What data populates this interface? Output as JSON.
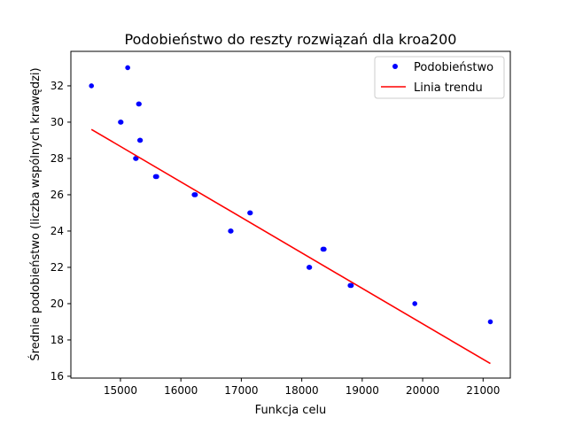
{
  "chart_data": {
    "type": "scatter",
    "title": "Podobieństwo do reszty rozwiązań dla kroa200",
    "xlabel": "Funkcja celu",
    "ylabel": "Średnie podobieństwo (liczba wspólnych krawędzi)",
    "xlim": [
      14180,
      21450
    ],
    "ylim": [
      15.9,
      33.9
    ],
    "xticks": [
      15000,
      16000,
      17000,
      18000,
      19000,
      20000,
      21000
    ],
    "yticks": [
      16,
      18,
      20,
      22,
      24,
      26,
      28,
      30,
      32
    ],
    "grid": false,
    "legend_position": "top-right",
    "series": [
      {
        "name": "Podobieństwo",
        "kind": "scatter",
        "color": "#0000ff",
        "points": [
          {
            "x": 14520,
            "y": 32
          },
          {
            "x": 15120,
            "y": 33
          },
          {
            "x": 15000,
            "y": 30
          },
          {
            "x": 15010,
            "y": 30
          },
          {
            "x": 15300,
            "y": 31
          },
          {
            "x": 15310,
            "y": 31
          },
          {
            "x": 15320,
            "y": 29
          },
          {
            "x": 15330,
            "y": 29
          },
          {
            "x": 15250,
            "y": 28
          },
          {
            "x": 15260,
            "y": 28
          },
          {
            "x": 15580,
            "y": 27
          },
          {
            "x": 15600,
            "y": 27
          },
          {
            "x": 16220,
            "y": 26
          },
          {
            "x": 16240,
            "y": 26
          },
          {
            "x": 16820,
            "y": 24
          },
          {
            "x": 16830,
            "y": 24
          },
          {
            "x": 17140,
            "y": 25
          },
          {
            "x": 17150,
            "y": 25
          },
          {
            "x": 18120,
            "y": 22
          },
          {
            "x": 18130,
            "y": 22
          },
          {
            "x": 18350,
            "y": 23
          },
          {
            "x": 18370,
            "y": 23
          },
          {
            "x": 18800,
            "y": 21
          },
          {
            "x": 18820,
            "y": 21
          },
          {
            "x": 19870,
            "y": 20
          },
          {
            "x": 21120,
            "y": 19
          }
        ]
      },
      {
        "name": "Linia trendu",
        "kind": "line",
        "color": "#ff0000",
        "points": [
          {
            "x": 14520,
            "y": 29.6
          },
          {
            "x": 21120,
            "y": 16.7
          }
        ]
      }
    ]
  }
}
